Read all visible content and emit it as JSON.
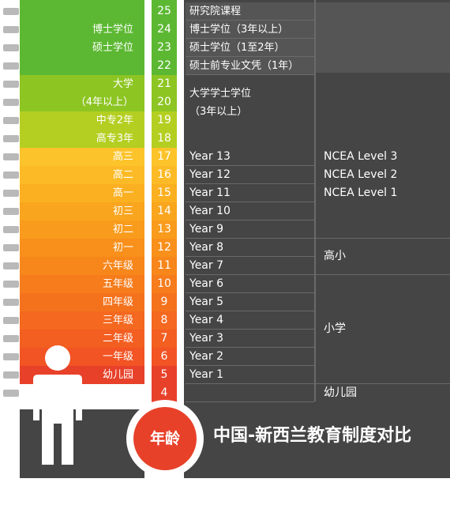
{
  "ages": [
    "25",
    "24",
    "23",
    "22",
    "21",
    "20",
    "19",
    "18",
    "17",
    "16",
    "15",
    "14",
    "13",
    "12",
    "11",
    "10",
    "9",
    "8",
    "7",
    "6",
    "5",
    "4"
  ],
  "china_levels": [
    {
      "label": "",
      "color": "#5cb832"
    },
    {
      "label": "博士学位",
      "color": "#5cb832"
    },
    {
      "label": "硕士学位",
      "color": "#5cb832"
    },
    {
      "label": "",
      "color": "#5cb832"
    },
    {
      "label": "大学",
      "color": "#8dc523"
    },
    {
      "label": "（4年以上）",
      "color": "#8dc523"
    },
    {
      "label": "中专2年",
      "color": "#b4cf21"
    },
    {
      "label": "高专3年",
      "color": "#b4cf21"
    },
    {
      "label": "高三",
      "color": "#fcc32a"
    },
    {
      "label": "高二",
      "color": "#fcbb26"
    },
    {
      "label": "高一",
      "color": "#fbb021"
    },
    {
      "label": "初三",
      "color": "#f9a51e"
    },
    {
      "label": "初二",
      "color": "#f99b1c"
    },
    {
      "label": "初一",
      "color": "#f8901b"
    },
    {
      "label": "六年级",
      "color": "#f7861b"
    },
    {
      "label": "五年级",
      "color": "#f67c1c"
    },
    {
      "label": "四年级",
      "color": "#f5721d"
    },
    {
      "label": "三年级",
      "color": "#f4681f"
    },
    {
      "label": "二年级",
      "color": "#f35e21"
    },
    {
      "label": "一年级",
      "color": "#f25424"
    },
    {
      "label": "幼儿园",
      "color": "#e8412a"
    },
    {
      "label": "",
      "color": "#ffffff"
    }
  ],
  "nz_levels": [
    "研究院课程",
    "博士学位（3年以上）",
    "硕士学位（1至2年）",
    "硕士前专业文凭（1年）",
    "大学学士学位",
    "（3年以上）",
    "",
    "",
    "Year 13",
    "Year 12",
    "Year 11",
    "Year 10",
    "Year 9",
    "Year 8",
    "Year 7",
    "Year 6",
    "Year 5",
    "Year 4",
    "Year 3",
    "Year 2",
    "Year 1",
    ""
  ],
  "nz_groups": {
    "ncea": [
      "NCEA Level 3",
      "NCEA Level 2",
      "NCEA Level 1"
    ],
    "intermediate": "高小",
    "primary": "小学",
    "kindergarten": "幼儿园"
  },
  "thermometer_label": "年龄",
  "title": "中国-新西兰教育制度对比",
  "colors": {
    "dark_panel": "#454545",
    "grey_cell": "#555555",
    "green_dark": "#5cb832",
    "green_light": "#8dc523",
    "red": "#e8412a"
  }
}
